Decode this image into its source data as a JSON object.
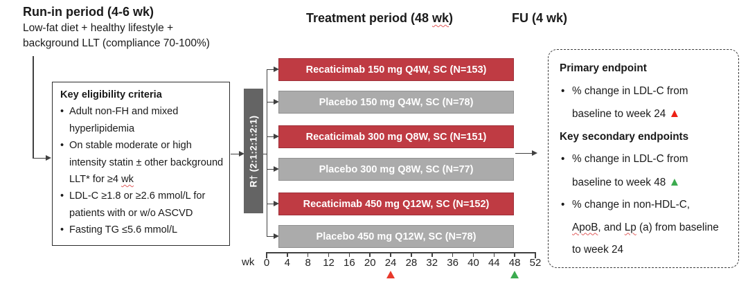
{
  "bullet_glyph": "•",
  "phases": {
    "run_in": {
      "title": "Run-in period (4-6 wk)",
      "desc_line1": "Low-fat diet + healthy lifestyle +",
      "desc_line2": "background LLT (compliance 70-100%)"
    },
    "treatment": {
      "title_segments": [
        {
          "t": "Treatment period (48 "
        },
        {
          "t": "wk",
          "wavy": true
        },
        {
          "t": ")"
        }
      ]
    },
    "follow_up": {
      "title": "FU (4 wk)"
    }
  },
  "eligibility": {
    "title": "Key eligibility criteria",
    "items": [
      {
        "segments": [
          {
            "t": "Adult non-FH and mixed hyperlipidemia"
          }
        ]
      },
      {
        "segments": [
          {
            "t": "On stable moderate or high intensity statin ± other background LLT* for ≥4 "
          },
          {
            "t": "wk",
            "wavy": true
          }
        ]
      },
      {
        "segments": [
          {
            "t": "LDL-C ≥1.8 or ≥2.6 mmol/L for patients with or w/o ASCVD"
          }
        ]
      },
      {
        "segments": [
          {
            "t": "Fasting TG ≤5.6 mmol/L"
          }
        ]
      }
    ]
  },
  "randomization": {
    "label": "R† (2:1:2:1:2:1)"
  },
  "arms": [
    {
      "label": "Recaticimab 150 mg Q4W, SC (N=153)",
      "type": "drug"
    },
    {
      "label": "Placebo 150 mg Q4W, SC (N=78)",
      "type": "placebo"
    },
    {
      "label": "Recaticimab 300 mg Q8W, SC (N=151)",
      "type": "drug"
    },
    {
      "label": "Placebo 300 mg Q8W, SC (N=77)",
      "type": "placebo"
    },
    {
      "label": "Recaticimab 450 mg Q12W, SC (N=152)",
      "type": "drug"
    },
    {
      "label": "Placebo 450 mg Q12W, SC (N=78)",
      "type": "placebo"
    }
  ],
  "axis": {
    "unit": "wk",
    "tick_labels": [
      "0",
      "4",
      "8",
      "12",
      "16",
      "20",
      "24",
      "28",
      "32",
      "36",
      "40",
      "44",
      "48",
      "52"
    ],
    "markers": [
      {
        "week": 24,
        "color": "#e8392b",
        "name": "week24-primary-marker"
      },
      {
        "week": 48,
        "color": "#3bab4f",
        "name": "week48-secondary-marker"
      }
    ]
  },
  "endpoints": {
    "primary_title": "Primary endpoint",
    "primary_items": [
      {
        "segments": [
          {
            "t": "% change in LDL-C from baseline to week 24 "
          },
          {
            "t": "▲",
            "color": "#ed2015",
            "triangle": true
          }
        ]
      }
    ],
    "secondary_title": "Key secondary endpoints",
    "secondary_items": [
      {
        "segments": [
          {
            "t": "% change in LDL-C from baseline to week 48 "
          },
          {
            "t": "▲",
            "color": "#3bab4f",
            "triangle": true
          }
        ]
      },
      {
        "segments": [
          {
            "t": "% change in non-HDL-C, "
          },
          {
            "t": "ApoB",
            "wavy": true
          },
          {
            "t": ", and "
          },
          {
            "t": "Lp",
            "wavy": true
          },
          {
            "t": " (a) from baseline to week 24"
          }
        ]
      }
    ]
  },
  "colors": {
    "drug_bar": "#bf3b43",
    "drug_bar_border": "#9d2f38",
    "placebo_bar": "#ababab",
    "placebo_bar_border": "#8f8f8f",
    "randomization_bar": "#646464",
    "connector": "#404040",
    "marker_red": "#e8392b",
    "marker_green": "#3bab4f"
  }
}
